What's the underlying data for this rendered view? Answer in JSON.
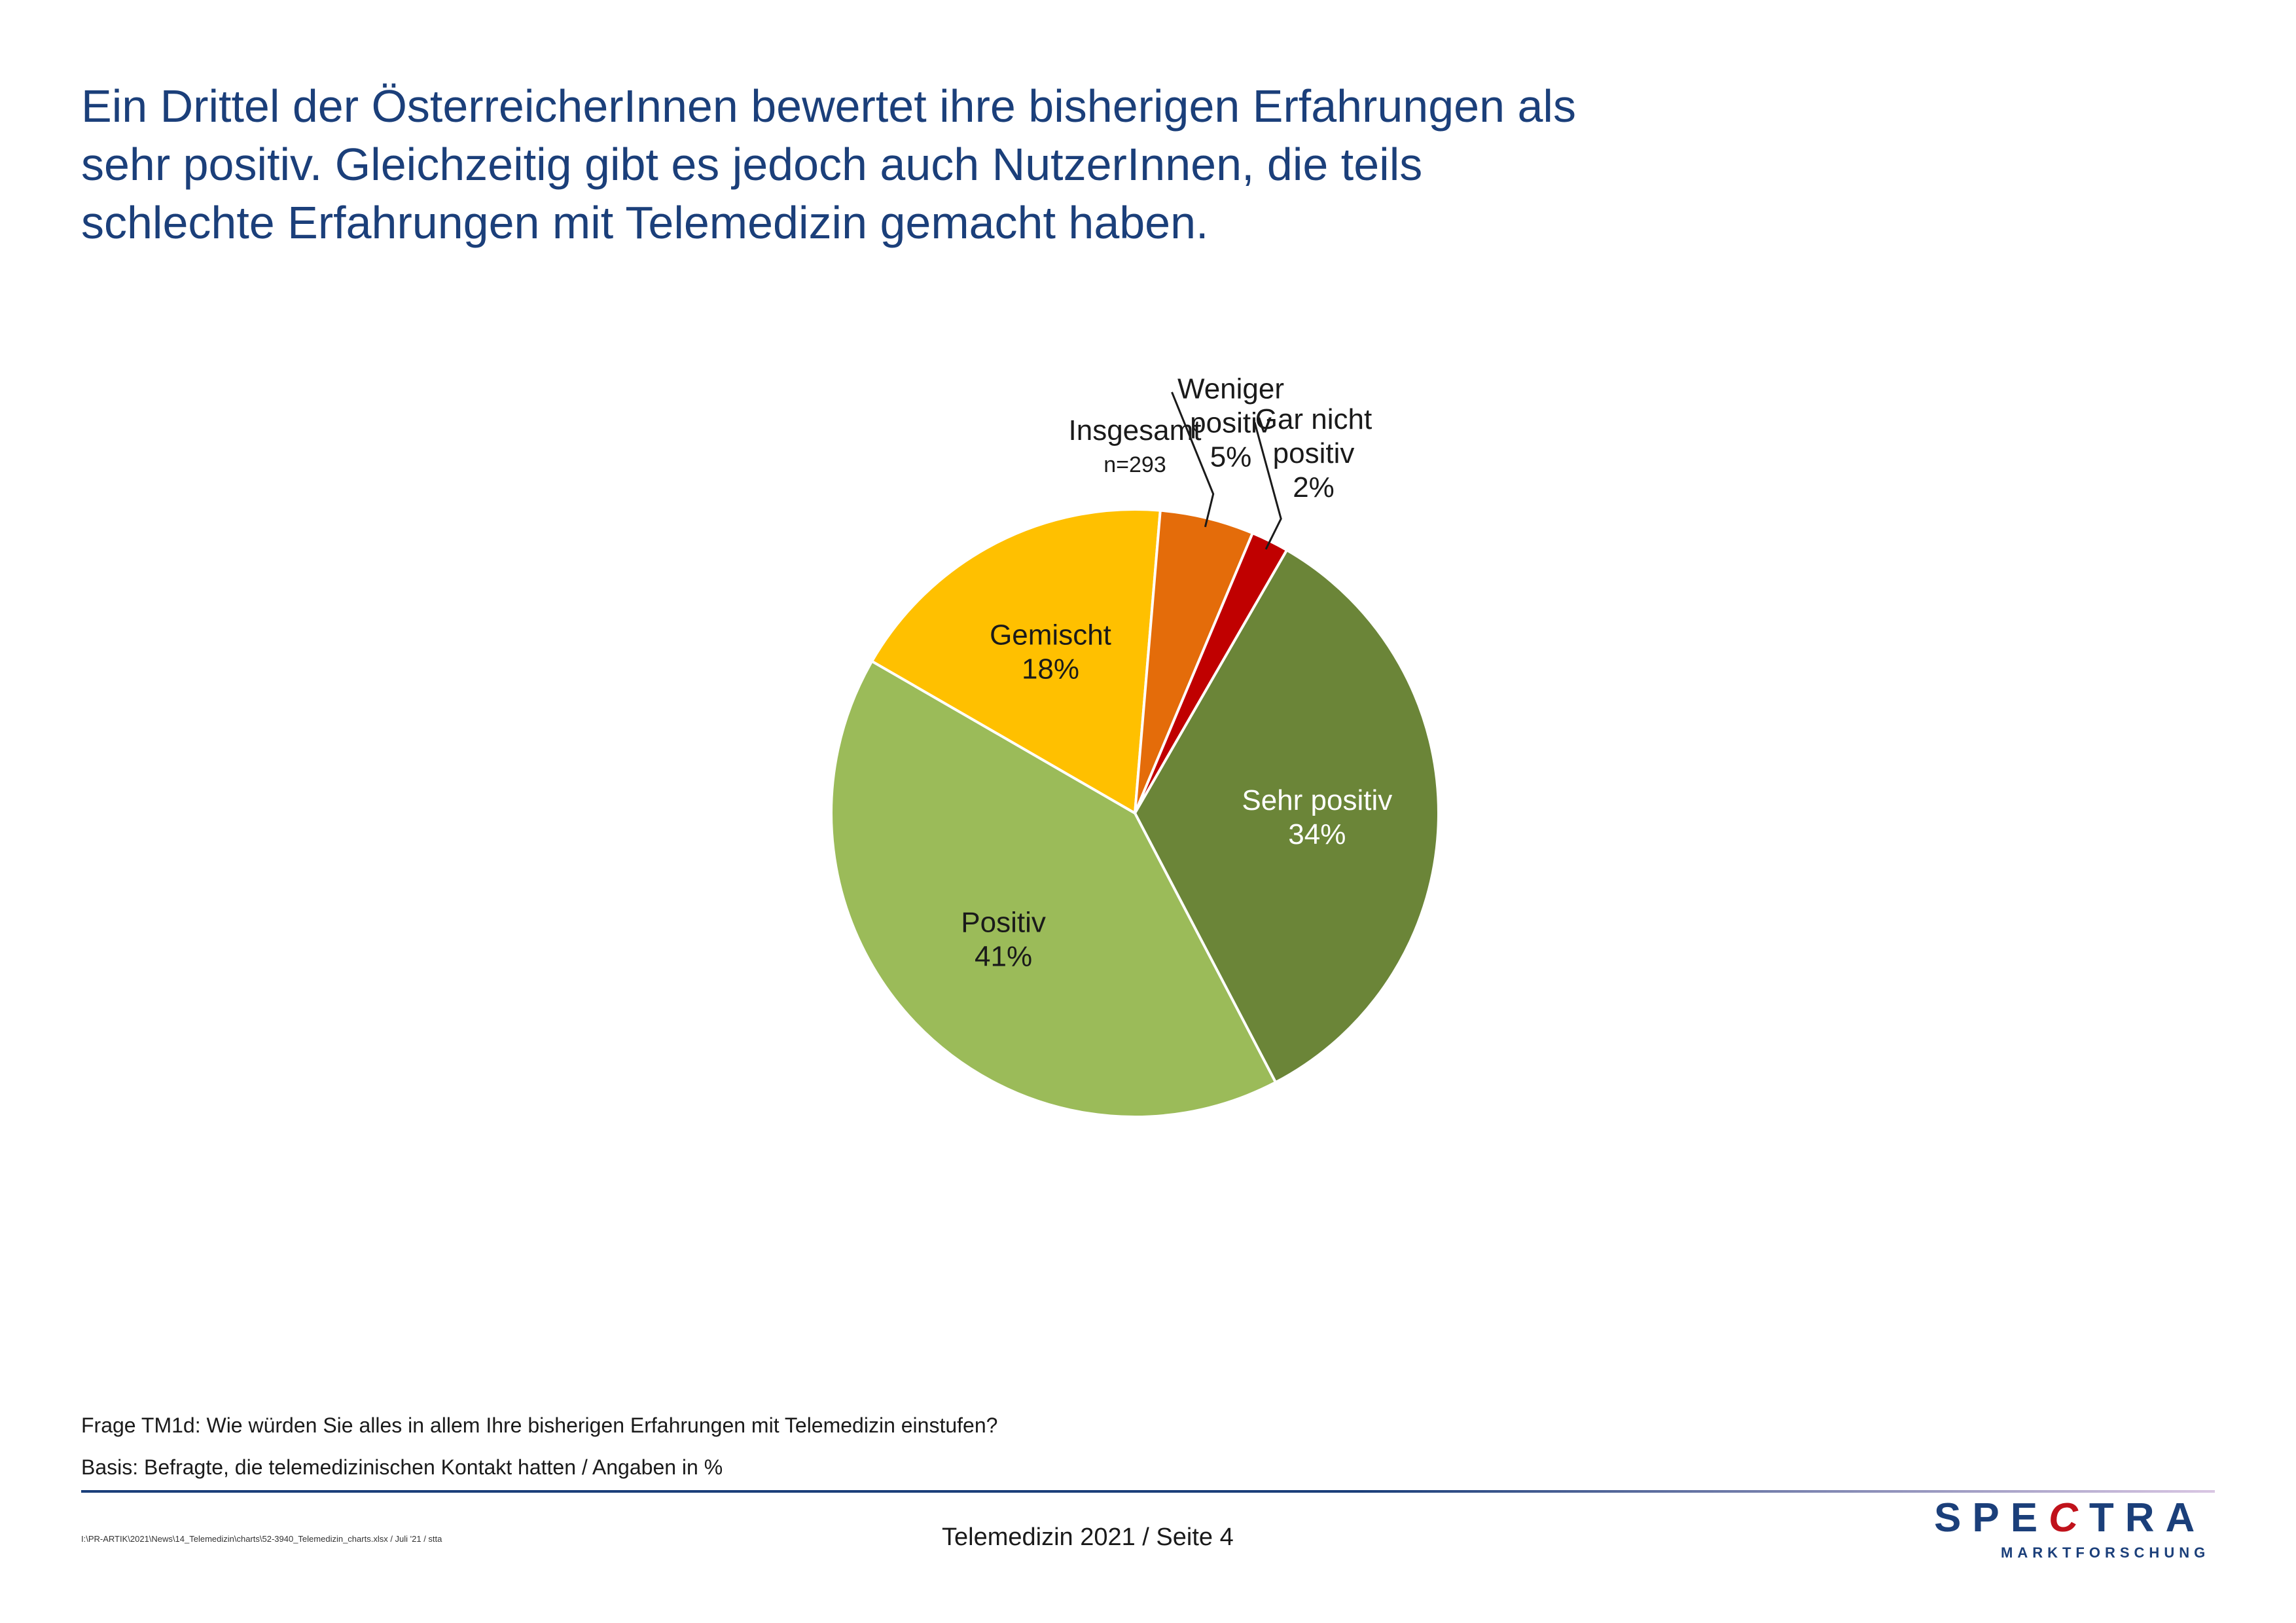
{
  "headline": {
    "line1": "Ein Drittel der ÖsterreicherInnen bewertet ihre bisherigen Erfahrungen als",
    "line2": "sehr positiv. Gleichzeitig gibt es jedoch auch NutzerInnen, die teils",
    "line3": "schlechte Erfahrungen mit Telemedizin gemacht haben."
  },
  "chart_data": {
    "type": "pie",
    "title": "Insgesamt",
    "subtitle": "n=293",
    "unit": "%",
    "start_angle_deg": 30,
    "direction": "clockwise",
    "slices": [
      {
        "label_lines": [
          "Sehr positiv"
        ],
        "value": 34,
        "value_label": "34%",
        "color": "#6b8538",
        "label_color": "#ffffff",
        "label_placement": "inside"
      },
      {
        "label_lines": [
          "Positiv"
        ],
        "value": 41,
        "value_label": "41%",
        "color": "#9bbb59",
        "label_color": "#1a1a1a",
        "label_placement": "inside"
      },
      {
        "label_lines": [
          "Gemischt"
        ],
        "value": 18,
        "value_label": "18%",
        "color": "#ffc000",
        "label_color": "#1a1a1a",
        "label_placement": "inside"
      },
      {
        "label_lines": [
          "Weniger",
          "positiv"
        ],
        "value": 5,
        "value_label": "5%",
        "color": "#e46c0a",
        "label_color": "#1a1a1a",
        "label_placement": "outside"
      },
      {
        "label_lines": [
          "Gar nicht",
          "positiv"
        ],
        "value": 2,
        "value_label": "2%",
        "color": "#c00000",
        "label_color": "#1a1a1a",
        "label_placement": "outside"
      }
    ]
  },
  "footer": {
    "question": "Frage TM1d: Wie würden Sie alles in allem Ihre bisherigen Erfahrungen mit Telemedizin einstufen?",
    "basis": "Basis: Befragte, die telemedizinischen Kontakt hatten / Angaben in %",
    "file_path": "I:\\PR-ARTIK\\2021\\News\\14_Telemedizin\\charts\\52-3940_Telemedizin_charts.xlsx / Juli '21 / stta",
    "page_label": "Telemedizin 2021  /  Seite  4"
  },
  "logo": {
    "wordmark": "SPECTRA",
    "tagline": "MARKTFORSCHUNG",
    "color": "#1b3f7a",
    "accent_color": "#c0121b"
  }
}
